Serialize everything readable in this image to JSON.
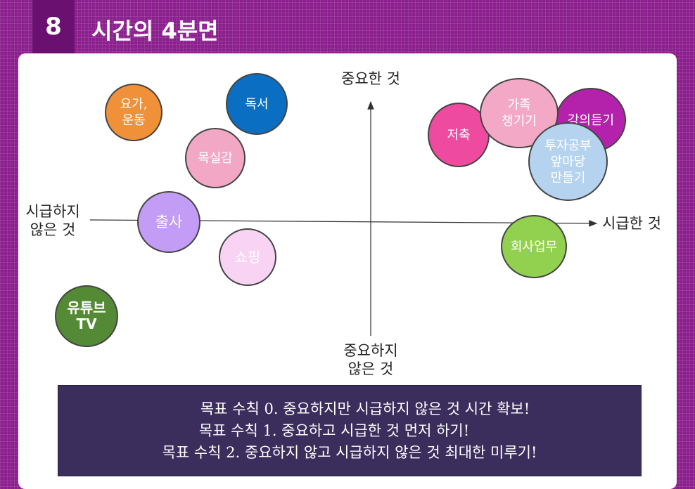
{
  "slide": {
    "number": "8",
    "title": "시간의 4분면"
  },
  "axes": {
    "top": "중요한 것",
    "bottom": "중요하지\n않은 것",
    "left": "시급하지\n않은 것",
    "right": "시급한 것"
  },
  "bubbles": [
    {
      "label": "요가,\n운동",
      "color": "#f0913a",
      "text_color": "#ffffff"
    },
    {
      "label": "독서",
      "color": "#0a6fc2",
      "text_color": "#ffffff"
    },
    {
      "label": "목실감",
      "color": "#f2a8c4",
      "text_color": "#ffffff"
    },
    {
      "label": "출사",
      "color": "#c29cf5",
      "text_color": "#ffffff"
    },
    {
      "label": "쇼핑",
      "color": "#f8d3f4",
      "text_color": "#ffffff"
    },
    {
      "label": "유튜브\nTV",
      "color": "#548a35",
      "text_color": "#ffffff"
    },
    {
      "label": "저축",
      "color": "#ee4a9f",
      "text_color": "#ffffff"
    },
    {
      "label": "강의듣기",
      "color": "#b422ab",
      "text_color": "#ffffff"
    },
    {
      "label": "가족\n챙기기",
      "color": "#f3a9c6",
      "text_color": "#ffffff"
    },
    {
      "label": "투자공부\n앞마당\n만들기",
      "color": "#b5d3ef",
      "text_color": "#ffffff"
    },
    {
      "label": "회사업무",
      "color": "#92d050",
      "text_color": "#ffffff"
    }
  ],
  "goals": [
    "목표 수칙 0. 중요하지만 시급하지 않은 것 시간 확보!",
    "목표 수칙 1. 중요하고 시급한 것 먼저 하기!",
    "목표 수칙 2. 중요하지 않고 시급하지 않은 것 최대한 미루기!"
  ]
}
